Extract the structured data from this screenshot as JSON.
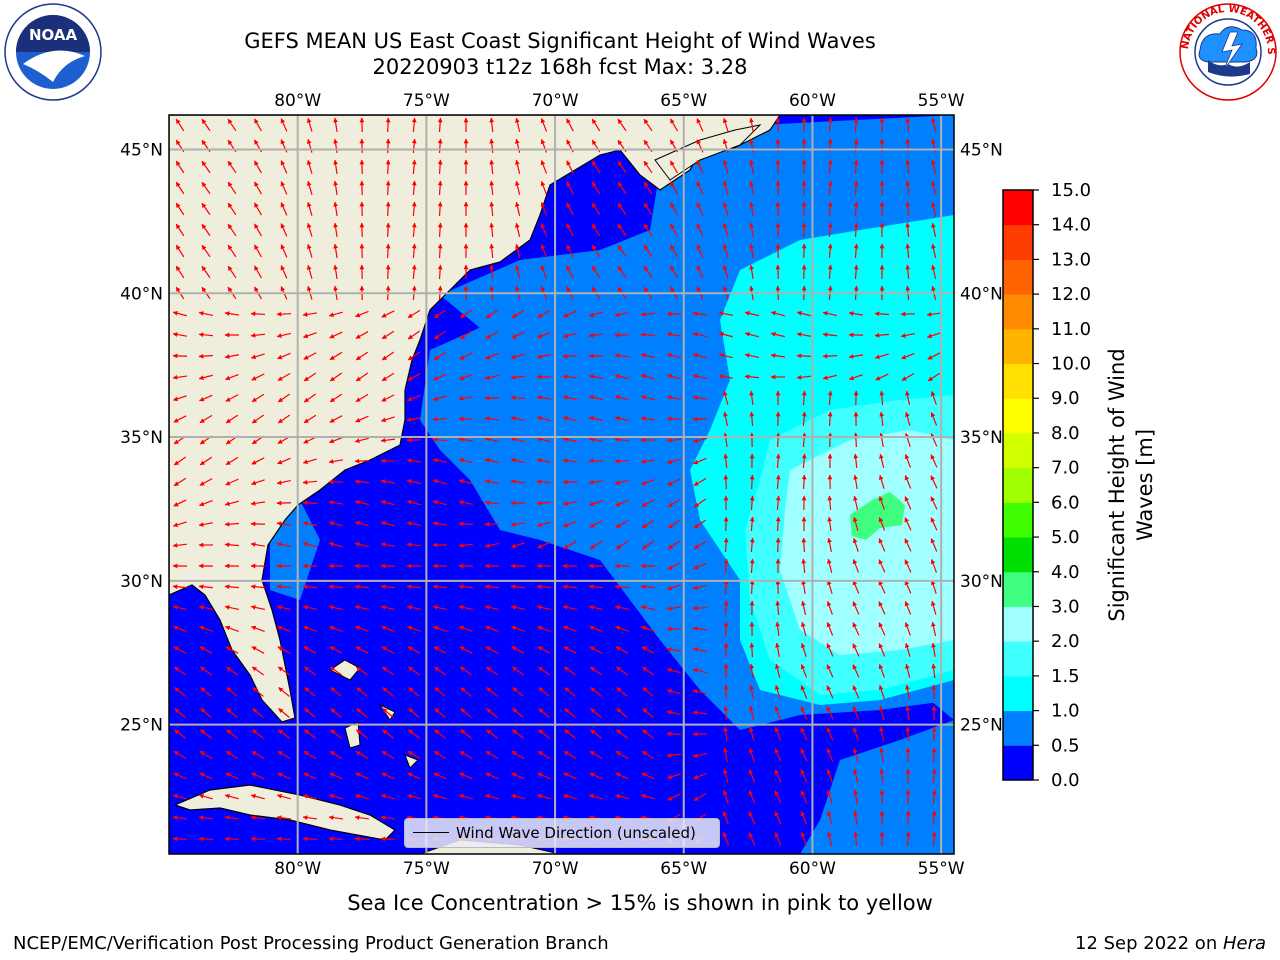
{
  "header": {
    "title_line1": "GEFS MEAN US East Coast Significant Height of Wind Waves",
    "title_line2": "20220903 t12z 168h fcst   Max: 3.28"
  },
  "logos": {
    "left": {
      "icon": "noaa-logo-icon",
      "text": "NOAA",
      "ring_text": "NATIONAL OCEANIC AND ATMOSPHERIC ADMINISTRATION · U.S. DEPARTMENT OF COMMERCE"
    },
    "right": {
      "icon": "nws-logo-icon",
      "ring_text": "NATIONAL WEATHER SERVICE"
    }
  },
  "map": {
    "lon_range": [
      -85,
      -54.5
    ],
    "lat_range": [
      20.5,
      46.2
    ],
    "lon_ticks": [
      {
        "value": -80,
        "label": "80°W"
      },
      {
        "value": -75,
        "label": "75°W"
      },
      {
        "value": -70,
        "label": "70°W"
      },
      {
        "value": -65,
        "label": "65°W"
      },
      {
        "value": -60,
        "label": "60°W"
      },
      {
        "value": -55,
        "label": "55°W"
      }
    ],
    "lat_ticks": [
      {
        "value": 45,
        "label": "45°N"
      },
      {
        "value": 40,
        "label": "40°N"
      },
      {
        "value": 35,
        "label": "35°N"
      },
      {
        "value": 30,
        "label": "30°N"
      },
      {
        "value": 25,
        "label": "25°N"
      }
    ],
    "gridlines": true,
    "arrow_legend": "Wind Wave Direction (unscaled)",
    "arrow_color": "#ff0000",
    "land_color": "#efeedd"
  },
  "colorbar": {
    "label": "Significant Height of Wind Waves [m]",
    "label_line1": "Significant Height of Wind",
    "label_line2": "Waves [m]",
    "levels": [
      0.0,
      0.5,
      1.0,
      1.5,
      2.0,
      3.0,
      4.0,
      5.0,
      6.0,
      7.0,
      8.0,
      9.0,
      10.0,
      11.0,
      12.0,
      13.0,
      14.0,
      15.0
    ],
    "tick_labels": [
      "0.0",
      "0.5",
      "1.0",
      "1.5",
      "2.0",
      "3.0",
      "4.0",
      "5.0",
      "6.0",
      "7.0",
      "8.0",
      "9.0",
      "10.0",
      "11.0",
      "12.0",
      "13.0",
      "14.0",
      "15.0"
    ],
    "colors": [
      "#0000ff",
      "#0080ff",
      "#00ffff",
      "#40ffff",
      "#a0ffff",
      "#40ff80",
      "#00e000",
      "#40ff00",
      "#a0ff00",
      "#d0ff00",
      "#ffff00",
      "#ffe000",
      "#ffb400",
      "#ff8c00",
      "#ff6400",
      "#ff3c00",
      "#ff0000"
    ]
  },
  "footer": {
    "sea_ice_note": "Sea Ice Concentration > 15% is shown in pink to yellow",
    "credit": "NCEP/EMC/Verification Post Processing Product Generation Branch",
    "date_text": "12 Sep 2022 on ",
    "machine": "Hera"
  }
}
